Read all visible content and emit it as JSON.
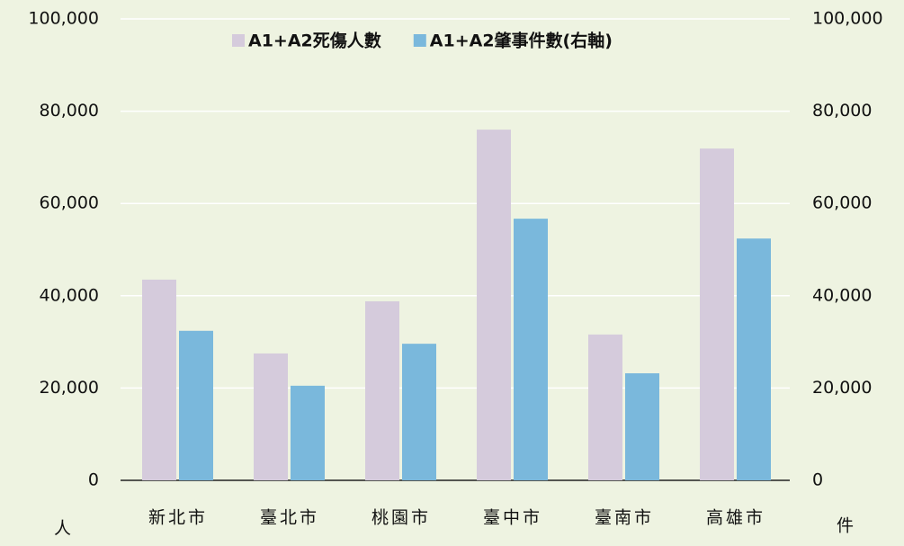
{
  "chart_data": {
    "type": "bar",
    "categories": [
      "新北市",
      "臺北市",
      "桃園市",
      "臺中市",
      "臺南市",
      "高雄市"
    ],
    "series": [
      {
        "name": "A1+A2死傷人數",
        "color": "#d5cbdc",
        "text_color": "#8e73a8",
        "values": [
          43500,
          27500,
          38800,
          76000,
          31600,
          71900
        ]
      },
      {
        "name": "A1+A2肇事件數(右軸)",
        "color": "#7ab8dc",
        "text_color": "#2e86c1",
        "axis": "y2",
        "values": [
          32400,
          20500,
          29600,
          56700,
          23200,
          52400
        ]
      }
    ],
    "ylim": [
      0,
      100000
    ],
    "yticks": [
      0,
      {
        "value": 20000,
        "label": "20,000"
      },
      {
        "value": 40000,
        "label": "40,000"
      },
      {
        "value": 60000,
        "label": "60,000"
      },
      {
        "value": 80000,
        "label": "80,000"
      },
      {
        "value": 100000,
        "label": "100,000"
      }
    ],
    "y2lim": [
      0,
      100000
    ],
    "y2ticks": [
      0,
      {
        "value": 20000,
        "label": "20,000"
      },
      {
        "value": 40000,
        "label": "40,000"
      },
      {
        "value": 60000,
        "label": "60,000"
      },
      {
        "value": 80000,
        "label": "80,000"
      },
      {
        "value": 100000,
        "label": "100,000"
      }
    ],
    "ylabel": "人",
    "y2label": "件",
    "grid": true,
    "legend": "top"
  }
}
